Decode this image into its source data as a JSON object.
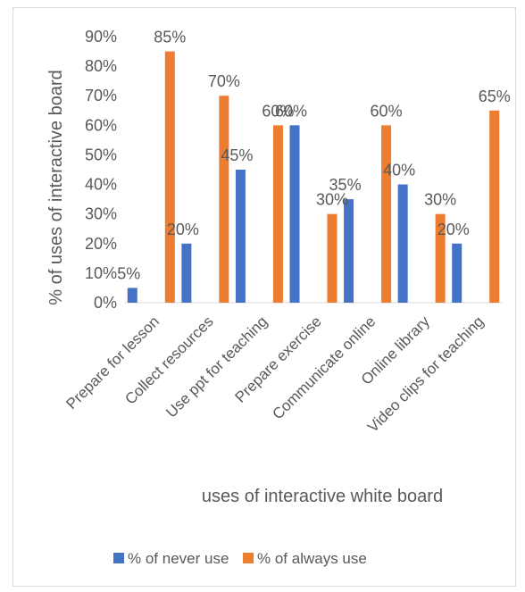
{
  "chart_data": {
    "type": "bar",
    "title": "",
    "xlabel": "uses of interactive white board",
    "ylabel": "% of uses of interactive board",
    "ylim": [
      0,
      90
    ],
    "yticks": [
      "0%",
      "10%",
      "20%",
      "30%",
      "40%",
      "50%",
      "60%",
      "70%",
      "80%",
      "90%"
    ],
    "grid": false,
    "legend_position": "bottom",
    "categories": [
      "Prepare for lesson",
      "Collect resources",
      "Use ppt for teaching",
      "Prepare exercise",
      "Communicate online",
      "Online library",
      "Video clips for teaching"
    ],
    "series": [
      {
        "name": "% of never use",
        "color": "#4472c4",
        "values": [
          5,
          20,
          45,
          60,
          35,
          40,
          20
        ],
        "labels": [
          "5%",
          "20%",
          "45%",
          "60%",
          "35%",
          "40%",
          "20%"
        ]
      },
      {
        "name": "% of always use",
        "color": "#ed7d31",
        "values": [
          85,
          70,
          60,
          30,
          60,
          30,
          65
        ],
        "labels": [
          "85%",
          "70%",
          "60%",
          "30%",
          "60%",
          "30%",
          "65%"
        ]
      }
    ]
  }
}
